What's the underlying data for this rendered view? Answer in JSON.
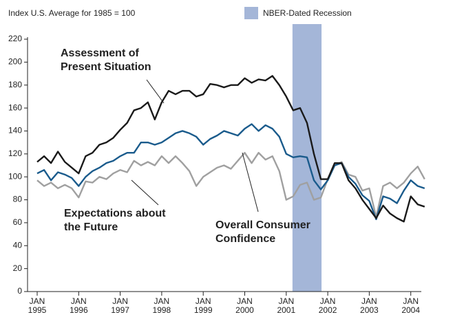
{
  "chart_data": {
    "type": "line",
    "ylabel": "Index U.S. Average for 1985 = 100",
    "categories": [
      "JAN\n1995",
      null,
      null,
      null,
      null,
      null,
      "JAN\n1996",
      null,
      null,
      null,
      null,
      null,
      "JAN\n1997",
      null,
      null,
      null,
      null,
      null,
      "JAN\n1998",
      null,
      null,
      null,
      null,
      null,
      "JAN\n1999",
      null,
      null,
      null,
      null,
      null,
      "JAN\n2000",
      null,
      null,
      null,
      null,
      null,
      "JAN\n2001",
      null,
      null,
      null,
      null,
      null,
      "JAN\n2002",
      null,
      null,
      null,
      null,
      null,
      "JAN\n2003",
      null,
      null,
      null,
      null,
      null,
      "JAN\n2004",
      null,
      null
    ],
    "series": [
      {
        "name": "Assessment of\nPresent Situation",
        "color": "#1a1a1a",
        "values": [
          113,
          118,
          112,
          122,
          113,
          108,
          103,
          118,
          121,
          128,
          130,
          134,
          141,
          147,
          158,
          160,
          165,
          150,
          165,
          175,
          172,
          175,
          175,
          170,
          172,
          181,
          180,
          178,
          180,
          180,
          186,
          182,
          185,
          184,
          188,
          180,
          170,
          158,
          160,
          147,
          120,
          98,
          98,
          112,
          112,
          97,
          90,
          80,
          72,
          64,
          75,
          68,
          64,
          61,
          83,
          76,
          74
        ]
      },
      {
        "name": "Overall Consumer\nConfidence",
        "color": "#1a5b8c",
        "values": [
          103,
          106,
          97,
          104,
          102,
          99,
          92,
          100,
          105,
          108,
          112,
          114,
          118,
          121,
          121,
          130,
          130,
          128,
          130,
          134,
          138,
          140,
          138,
          135,
          128,
          133,
          136,
          140,
          138,
          136,
          142,
          146,
          140,
          145,
          142,
          135,
          120,
          117,
          118,
          117,
          97,
          89,
          97,
          110,
          112,
          100,
          94,
          84,
          79,
          63,
          83,
          81,
          77,
          88,
          97,
          92,
          90
        ]
      },
      {
        "name": "Expectations about\nthe Future",
        "color": "#a0a0a0",
        "values": [
          97,
          92,
          95,
          90,
          93,
          90,
          82,
          96,
          95,
          100,
          98,
          103,
          106,
          104,
          114,
          110,
          113,
          110,
          118,
          112,
          118,
          112,
          105,
          92,
          100,
          104,
          108,
          110,
          107,
          114,
          121,
          112,
          121,
          115,
          118,
          105,
          80,
          83,
          93,
          95,
          80,
          82,
          98,
          110,
          113,
          102,
          100,
          88,
          90,
          65,
          92,
          95,
          90,
          95,
          103,
          109,
          98
        ]
      }
    ],
    "recession": {
      "label": "NBER-Dated Recession",
      "color": "#a4b6d8",
      "range": [
        37,
        41
      ]
    },
    "ylim": [
      0,
      220
    ],
    "yticks": [
      0,
      20,
      40,
      60,
      80,
      100,
      120,
      140,
      160,
      180,
      200,
      220
    ]
  }
}
